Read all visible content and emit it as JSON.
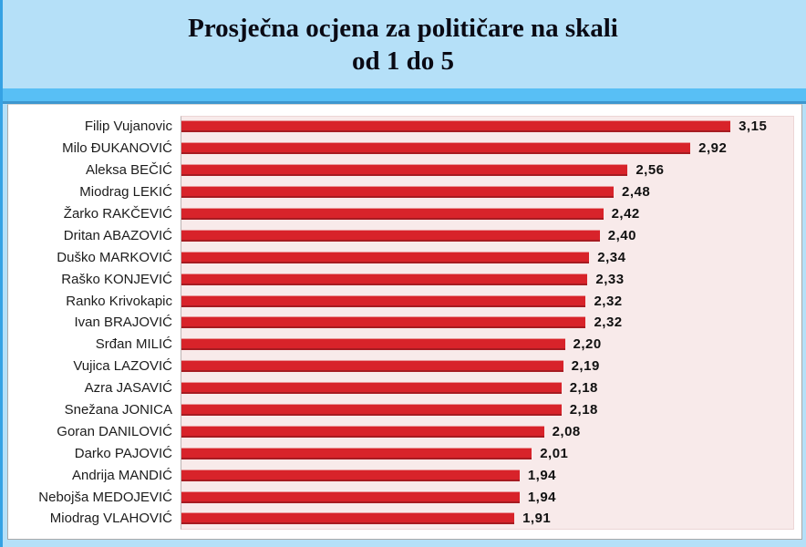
{
  "title": {
    "line1": "Prosječna ocjena za političare na skali",
    "line2": "od 1 do 5"
  },
  "colors": {
    "page_background": "#b5e0f8",
    "divider_strip": "#58bff5",
    "divider_strip_edge": "#3d97cf",
    "panel_background": "#ffffff",
    "plot_background": "#f8eaea",
    "bar_red": "#d8232a",
    "title_text": "#0a0a14",
    "label_text": "#1c1c1c"
  },
  "chart_data": {
    "type": "bar",
    "orientation": "horizontal",
    "title": "Prosječna ocjena za političare na skali od 1 do 5",
    "xlabel": "",
    "ylabel": "",
    "xlim": [
      0,
      3.5
    ],
    "grid": false,
    "legend": false,
    "bar_color": "#d8232a",
    "categories": [
      "Filip Vujanovic",
      "Milo ĐUKANOVIĆ",
      "Aleksa BEČIĆ",
      "Miodrag LEKIĆ",
      "Žarko RAKČEVIĆ",
      "Dritan ABAZOVIĆ",
      "Duško MARKOVIĆ",
      "Raško KONJEVIĆ",
      "Ranko Krivokapic",
      "Ivan BRAJOVIĆ",
      "Srđan MILIĆ",
      "Vujica LAZOVIĆ",
      "Azra JASAVIĆ",
      "Snežana JONICA",
      "Goran DANILOVIĆ",
      "Darko PAJOVIĆ",
      "Andrija MANDIĆ",
      "Nebojša MEDOJEVIĆ",
      "Miodrag VLAHOVIĆ"
    ],
    "values": [
      3.15,
      2.92,
      2.56,
      2.48,
      2.42,
      2.4,
      2.34,
      2.33,
      2.32,
      2.32,
      2.2,
      2.19,
      2.18,
      2.18,
      2.08,
      2.01,
      1.94,
      1.94,
      1.91
    ],
    "value_labels": [
      "3,15",
      "2,92",
      "2,56",
      "2,48",
      "2,42",
      "2,40",
      "2,34",
      "2,33",
      "2,32",
      "2,32",
      "2,20",
      "2,19",
      "2,18",
      "2,18",
      "2,08",
      "2,01",
      "1,94",
      "1,94",
      "1,91"
    ]
  }
}
